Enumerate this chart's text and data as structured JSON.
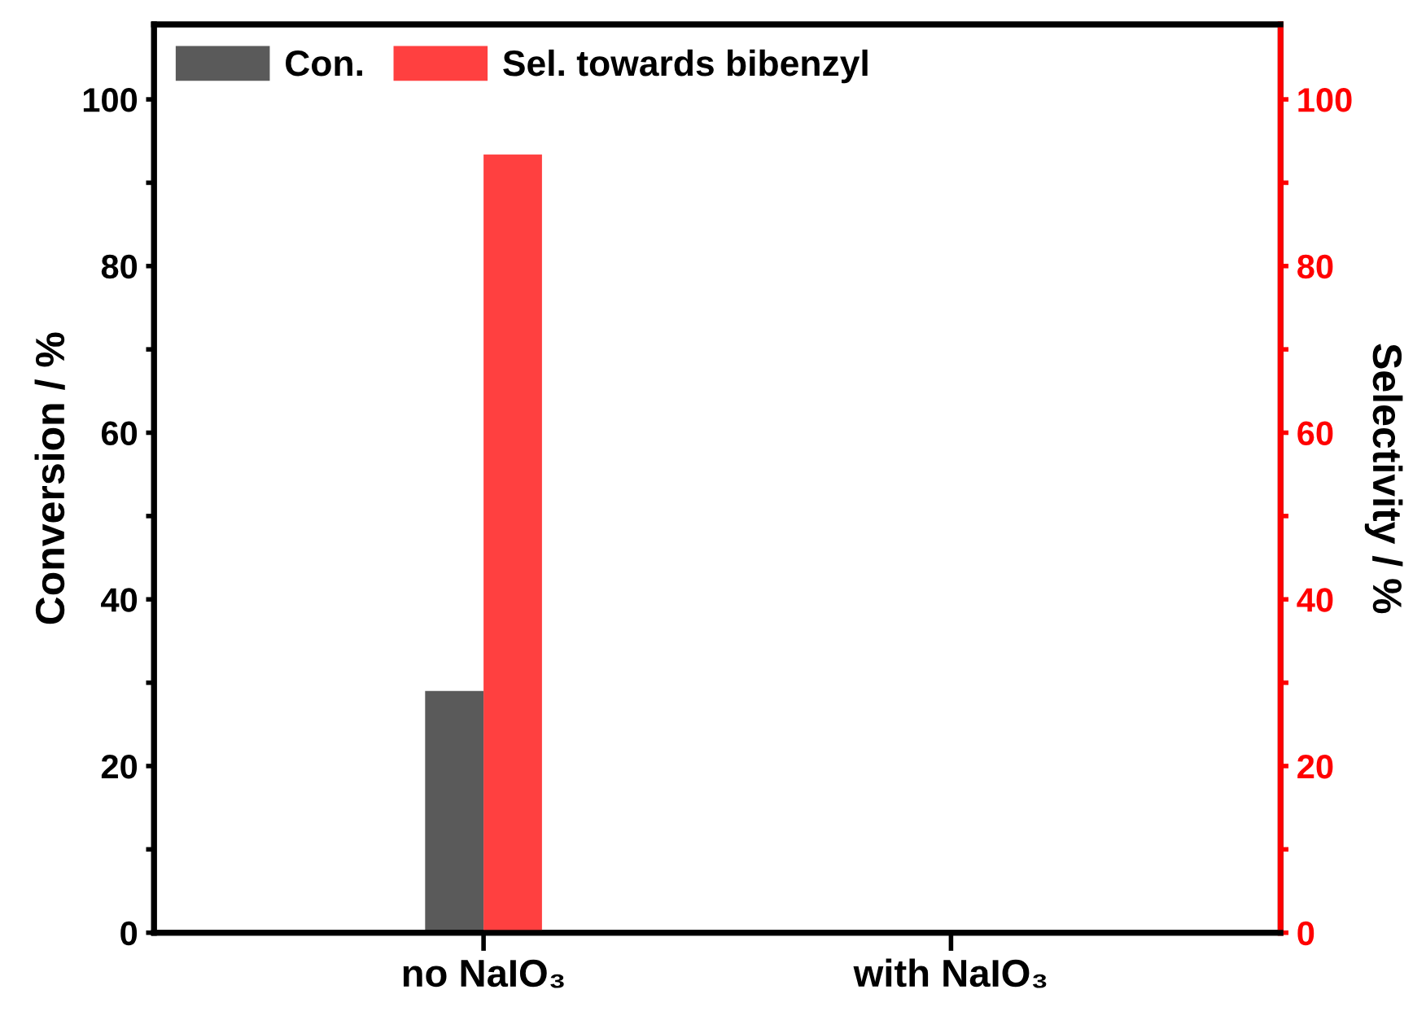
{
  "chart_data": {
    "type": "bar",
    "categories": [
      "no NaIO₃",
      "with NaIO₃"
    ],
    "series": [
      {
        "name": "Con.",
        "color": "#5a5a5a",
        "values": [
          29,
          null
        ]
      },
      {
        "name": "Sel. towards bibenzyl",
        "color": "#ff4040",
        "values": [
          93.4,
          null
        ],
        "axis": "y2"
      }
    ],
    "ylabel": "Conversion / %",
    "y2label": "Selectivity / %",
    "ylim": [
      0,
      109
    ],
    "yticks": [
      0,
      {
        "value": 10,
        "label": null
      },
      20,
      {
        "value": 30,
        "label": null
      },
      40,
      {
        "value": 50,
        "label": null
      },
      60,
      {
        "value": 70,
        "label": null
      },
      80,
      {
        "value": 90,
        "label": null
      },
      100
    ],
    "y2lim": [
      0,
      109
    ],
    "y2ticks": [
      0,
      {
        "value": 10,
        "label": null
      },
      20,
      {
        "value": 30,
        "label": null
      },
      40,
      {
        "value": 50,
        "label": null
      },
      60,
      {
        "value": 70,
        "label": null
      },
      80,
      {
        "value": 90,
        "label": null
      },
      100
    ],
    "legend": "top left",
    "grid": false
  }
}
